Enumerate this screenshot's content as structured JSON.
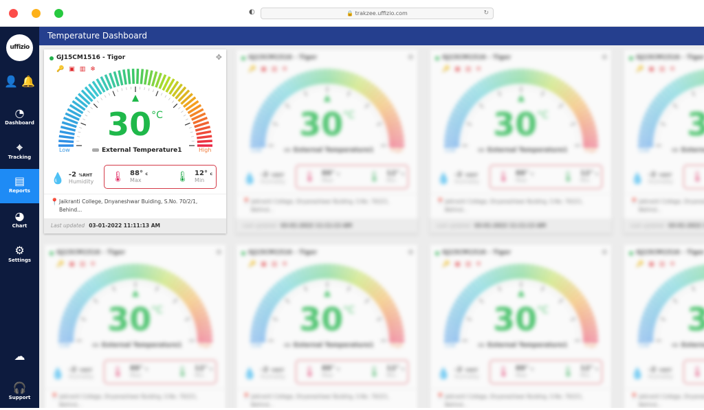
{
  "browser": {
    "url": "trakzee.uffizio.com"
  },
  "sidebar": {
    "logo": "uffizio",
    "items": [
      {
        "label": "Dashboard",
        "icon": "speedometer-icon"
      },
      {
        "label": "Tracking",
        "icon": "location-pin-icon"
      },
      {
        "label": "Reports",
        "icon": "report-icon",
        "active": true
      },
      {
        "label": "Chart",
        "icon": "pie-chart-icon"
      },
      {
        "label": "Settings",
        "icon": "gear-icon"
      }
    ],
    "support": "Support"
  },
  "header": {
    "title": "Temperature Dashboard"
  },
  "card": {
    "vehicle": "GJ15CM1516 - Tigor",
    "status_color": "#22b14c",
    "value": "30",
    "unit": "°C",
    "low": "Low",
    "high": "High",
    "sensor": "External Temperature1",
    "humidity": {
      "value": "-2",
      "unit": "%RHT",
      "label": "Humidity"
    },
    "max": {
      "value": "88",
      "unit": "c",
      "label": "Max"
    },
    "min": {
      "value": "12",
      "unit": "c",
      "label": "Min"
    },
    "address": "Jaikranti College, Dnyaneshwar Buiding, S.No. 70/2/1, Behind...",
    "last_updated_label": "Last updated",
    "last_updated": "03-01-2022 11:11:13 AM"
  }
}
